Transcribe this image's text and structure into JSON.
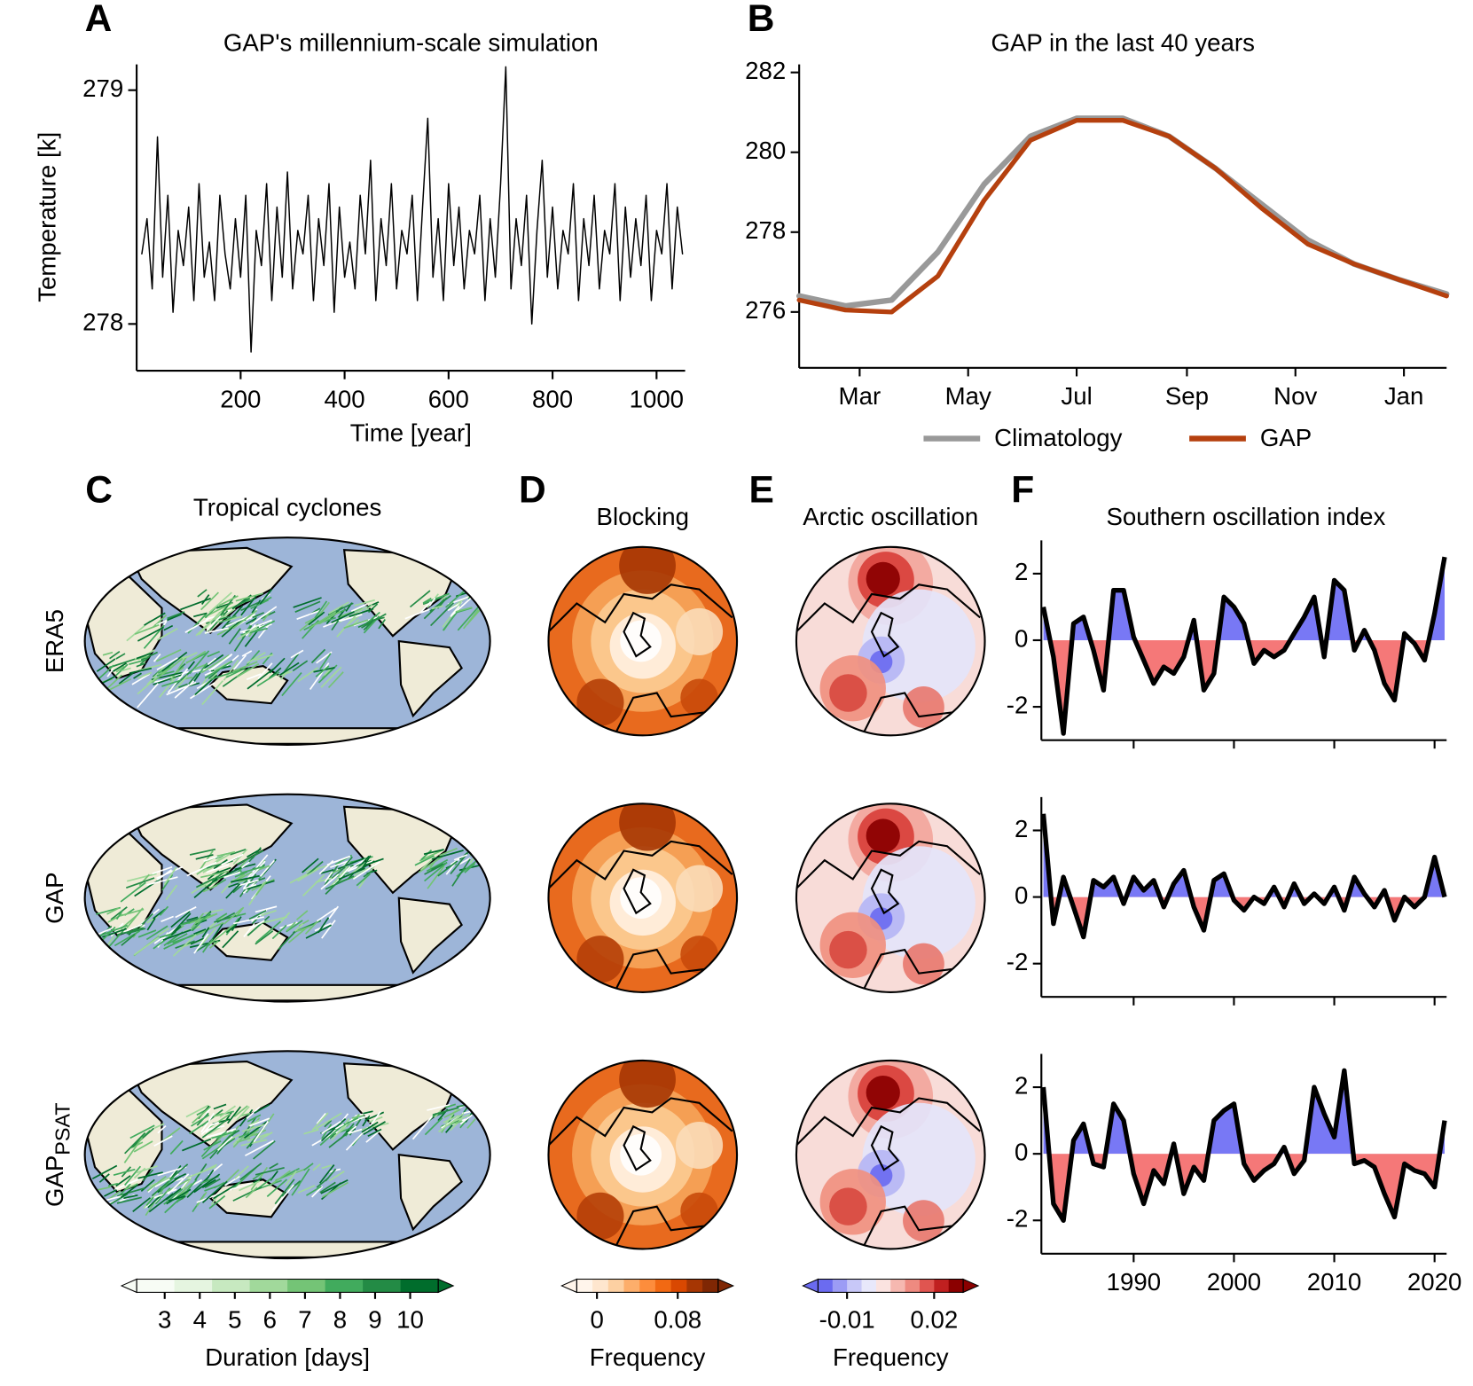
{
  "chart_data": [
    {
      "type": "line",
      "panel": "A",
      "title": "GAP's millennium-scale simulation",
      "x_label": "Time [year]",
      "y_label": "Temperature [k]",
      "x": [
        10,
        20,
        30,
        40,
        50,
        60,
        70,
        80,
        90,
        100,
        110,
        120,
        130,
        140,
        150,
        160,
        170,
        180,
        190,
        200,
        210,
        220,
        230,
        240,
        250,
        260,
        270,
        280,
        290,
        300,
        310,
        320,
        330,
        340,
        350,
        360,
        370,
        380,
        390,
        400,
        410,
        420,
        430,
        440,
        450,
        460,
        470,
        480,
        490,
        500,
        510,
        520,
        530,
        540,
        550,
        560,
        570,
        580,
        590,
        600,
        610,
        620,
        630,
        640,
        650,
        660,
        670,
        680,
        690,
        700,
        710,
        720,
        730,
        740,
        750,
        760,
        770,
        780,
        790,
        800,
        810,
        820,
        830,
        840,
        850,
        860,
        870,
        880,
        890,
        900,
        910,
        920,
        930,
        940,
        950,
        960,
        970,
        980,
        990,
        1000,
        1010,
        1020,
        1030,
        1040,
        1050
      ],
      "series": [
        {
          "color": "#000000",
          "values": [
            278.3,
            278.45,
            278.15,
            278.8,
            278.2,
            278.55,
            278.05,
            278.4,
            278.25,
            278.5,
            278.1,
            278.6,
            278.2,
            278.35,
            278.1,
            278.55,
            278.3,
            278.15,
            278.45,
            278.2,
            278.55,
            277.88,
            278.4,
            278.25,
            278.6,
            278.1,
            278.5,
            278.2,
            278.65,
            278.15,
            278.4,
            278.3,
            278.55,
            278.1,
            278.45,
            278.25,
            278.6,
            278.05,
            278.5,
            278.2,
            278.35,
            278.15,
            278.55,
            278.3,
            278.7,
            278.1,
            278.45,
            278.25,
            278.6,
            278.15,
            278.4,
            278.3,
            278.55,
            278.1,
            278.5,
            278.88,
            278.2,
            278.45,
            278.1,
            278.6,
            278.25,
            278.5,
            278.15,
            278.4,
            278.3,
            278.55,
            278.1,
            278.45,
            278.2,
            278.6,
            279.1,
            278.15,
            278.45,
            278.25,
            278.55,
            278.0,
            278.4,
            278.7,
            278.2,
            278.5,
            278.15,
            278.4,
            278.3,
            278.6,
            278.1,
            278.45,
            278.25,
            278.55,
            278.15,
            278.4,
            278.3,
            278.6,
            278.1,
            278.5,
            278.2,
            278.45,
            278.25,
            278.55,
            278.1,
            278.4,
            278.3,
            278.6,
            278.15,
            278.5,
            278.3
          ]
        }
      ],
      "xlim": [
        0,
        1055
      ],
      "ylim": [
        277.8,
        279.11
      ],
      "xticks": [
        200,
        400,
        600,
        800,
        1000
      ],
      "yticks": [
        278,
        279
      ]
    },
    {
      "type": "line",
      "panel": "B",
      "title": "GAP in the last 40 years",
      "x": [
        -34,
        -8,
        18,
        44,
        70,
        96,
        122,
        148,
        174,
        200,
        226,
        252,
        278,
        304,
        330
      ],
      "series": [
        {
          "name": "Climatology",
          "color": "#999999",
          "values": [
            276.4,
            276.15,
            276.3,
            277.5,
            279.2,
            280.4,
            280.85,
            280.85,
            280.4,
            279.6,
            278.7,
            277.8,
            277.2,
            276.8,
            276.45
          ]
        },
        {
          "name": "GAP",
          "color": "#b5400e",
          "values": [
            276.3,
            276.05,
            276.0,
            276.9,
            278.8,
            280.3,
            280.8,
            280.8,
            280.4,
            279.6,
            278.6,
            277.7,
            277.2,
            276.8,
            276.4
          ]
        }
      ],
      "xlim": [
        -34,
        330
      ],
      "xticks": [
        {
          "value": 0,
          "label": "Mar"
        },
        {
          "value": 61,
          "label": "May"
        },
        {
          "value": 122,
          "label": "Jul"
        },
        {
          "value": 184,
          "label": "Sep"
        },
        {
          "value": 245,
          "label": "Nov"
        },
        {
          "value": 306,
          "label": "Jan"
        }
      ],
      "ylim": [
        274.6,
        282.2
      ],
      "yticks": [
        276,
        278,
        280,
        282
      ],
      "legend": "below"
    },
    {
      "type": "area_sign",
      "panel": "F",
      "title": "Southern oscillation index",
      "color": "#000000",
      "positive_color": "#7878f5",
      "negative_color": "#f57878",
      "x": [
        1981,
        1982,
        1983,
        1984,
        1985,
        1986,
        1987,
        1988,
        1989,
        1990,
        1991,
        1992,
        1993,
        1994,
        1995,
        1996,
        1997,
        1998,
        1999,
        2000,
        2001,
        2002,
        2003,
        2004,
        2005,
        2006,
        2007,
        2008,
        2009,
        2010,
        2011,
        2012,
        2013,
        2014,
        2015,
        2016,
        2017,
        2018,
        2019,
        2020,
        2021
      ],
      "values": [
        1.0,
        -0.5,
        -2.8,
        0.5,
        0.7,
        -0.3,
        -1.5,
        1.5,
        1.5,
        0.1,
        -0.6,
        -1.3,
        -0.8,
        -1.0,
        -0.5,
        0.6,
        -1.5,
        -1.0,
        1.3,
        1.0,
        0.5,
        -0.7,
        -0.3,
        -0.5,
        -0.3,
        0.2,
        0.7,
        1.3,
        -0.5,
        1.8,
        1.5,
        -0.3,
        0.3,
        -0.3,
        -1.3,
        -1.8,
        0.2,
        -0.1,
        -0.6,
        0.8,
        2.5
      ],
      "xlim": [
        1980.8,
        2021.2
      ],
      "xticks": [
        1990,
        2000,
        2010,
        2020
      ],
      "ylim": [
        -3,
        3
      ],
      "yticks": [
        -2,
        0,
        2
      ],
      "show_xtick_labels": false
    },
    {
      "type": "area_sign",
      "color": "#000000",
      "positive_color": "#7878f5",
      "negative_color": "#f57878",
      "x": [
        1981,
        1982,
        1983,
        1984,
        1985,
        1986,
        1987,
        1988,
        1989,
        1990,
        1991,
        1992,
        1993,
        1994,
        1995,
        1996,
        1997,
        1998,
        1999,
        2000,
        2001,
        2002,
        2003,
        2004,
        2005,
        2006,
        2007,
        2008,
        2009,
        2010,
        2011,
        2012,
        2013,
        2014,
        2015,
        2016,
        2017,
        2018,
        2019,
        2020,
        2021
      ],
      "values": [
        2.5,
        -0.8,
        0.6,
        -0.3,
        -1.2,
        0.5,
        0.3,
        0.6,
        -0.2,
        0.6,
        0.2,
        0.5,
        -0.3,
        0.4,
        0.8,
        -0.3,
        -1.0,
        0.5,
        0.7,
        -0.1,
        -0.4,
        0.0,
        -0.2,
        0.3,
        -0.3,
        0.4,
        -0.2,
        0.1,
        -0.2,
        0.3,
        -0.4,
        0.6,
        0.1,
        -0.3,
        0.2,
        -0.7,
        0.0,
        -0.3,
        0.0,
        1.2,
        0.0
      ],
      "xlim": [
        1980.8,
        2021.2
      ],
      "xticks": [
        1990,
        2000,
        2010,
        2020
      ],
      "ylim": [
        -3,
        3
      ],
      "yticks": [
        -2,
        0,
        2
      ],
      "show_xtick_labels": false
    },
    {
      "type": "area_sign",
      "color": "#000000",
      "positive_color": "#7878f5",
      "negative_color": "#f57878",
      "x": [
        1981,
        1982,
        1983,
        1984,
        1985,
        1986,
        1987,
        1988,
        1989,
        1990,
        1991,
        1992,
        1993,
        1994,
        1995,
        1996,
        1997,
        1998,
        1999,
        2000,
        2001,
        2002,
        2003,
        2004,
        2005,
        2006,
        2007,
        2008,
        2009,
        2010,
        2011,
        2012,
        2013,
        2014,
        2015,
        2016,
        2017,
        2018,
        2019,
        2020,
        2021
      ],
      "values": [
        2.0,
        -1.5,
        -2.0,
        0.4,
        0.9,
        -0.3,
        -0.4,
        1.5,
        1.0,
        -0.6,
        -1.5,
        -0.5,
        -0.9,
        0.3,
        -1.2,
        -0.4,
        -0.8,
        1.0,
        1.3,
        1.5,
        -0.3,
        -0.8,
        -0.5,
        -0.3,
        0.2,
        -0.6,
        -0.2,
        2.0,
        1.2,
        0.5,
        2.5,
        -0.3,
        -0.2,
        -0.4,
        -1.2,
        -1.9,
        -0.3,
        -0.5,
        -0.6,
        -1.0,
        1.0
      ],
      "xlim": [
        1980.8,
        2021.2
      ],
      "xticks": [
        1990,
        2000,
        2010,
        2020
      ],
      "ylim": [
        -3,
        3
      ],
      "yticks": [
        -2,
        0,
        2
      ],
      "show_xtick_labels": true
    },
    {
      "type": "colorbar",
      "label": "Duration [days]",
      "xlim": [
        2.2,
        10.8
      ],
      "xticks": [
        3,
        4,
        5,
        6,
        7,
        8,
        9,
        10
      ],
      "colors": [
        "#f7fcf5",
        "#e5f5e0",
        "#c7e9c0",
        "#a1d99b",
        "#74c476",
        "#41ab5d",
        "#238b45",
        "#006d2c"
      ]
    },
    {
      "type": "colorbar",
      "label": "Frequency",
      "xlim": [
        -0.02,
        0.12
      ],
      "xticks": [
        0,
        0.08
      ],
      "colors": [
        "#fff5eb",
        "#fee6ce",
        "#fdd0a2",
        "#fdae6b",
        "#fd8d3c",
        "#f16913",
        "#d94801",
        "#a63603",
        "#7f2704"
      ]
    },
    {
      "type": "colorbar",
      "label": "Frequency",
      "xlim": [
        -0.02,
        0.03
      ],
      "xticks": [
        -0.01,
        0.02
      ],
      "colors": [
        "#6b6bf0",
        "#9c9cf5",
        "#c8c8f8",
        "#e8e8fb",
        "#fbe3e0",
        "#f6b8b0",
        "#ee8a80",
        "#e05550",
        "#c02020",
        "#8b0000"
      ]
    }
  ],
  "maps": [
    {
      "panel": "C",
      "title": "Tropical cyclones"
    },
    {
      "panel": "D",
      "title": "Blocking"
    },
    {
      "panel": "E",
      "title": "Arctic oscillation"
    }
  ],
  "rows": [
    "ERA5",
    "GAP",
    {
      "text": "GAP",
      "sub": "PSAT"
    }
  ]
}
